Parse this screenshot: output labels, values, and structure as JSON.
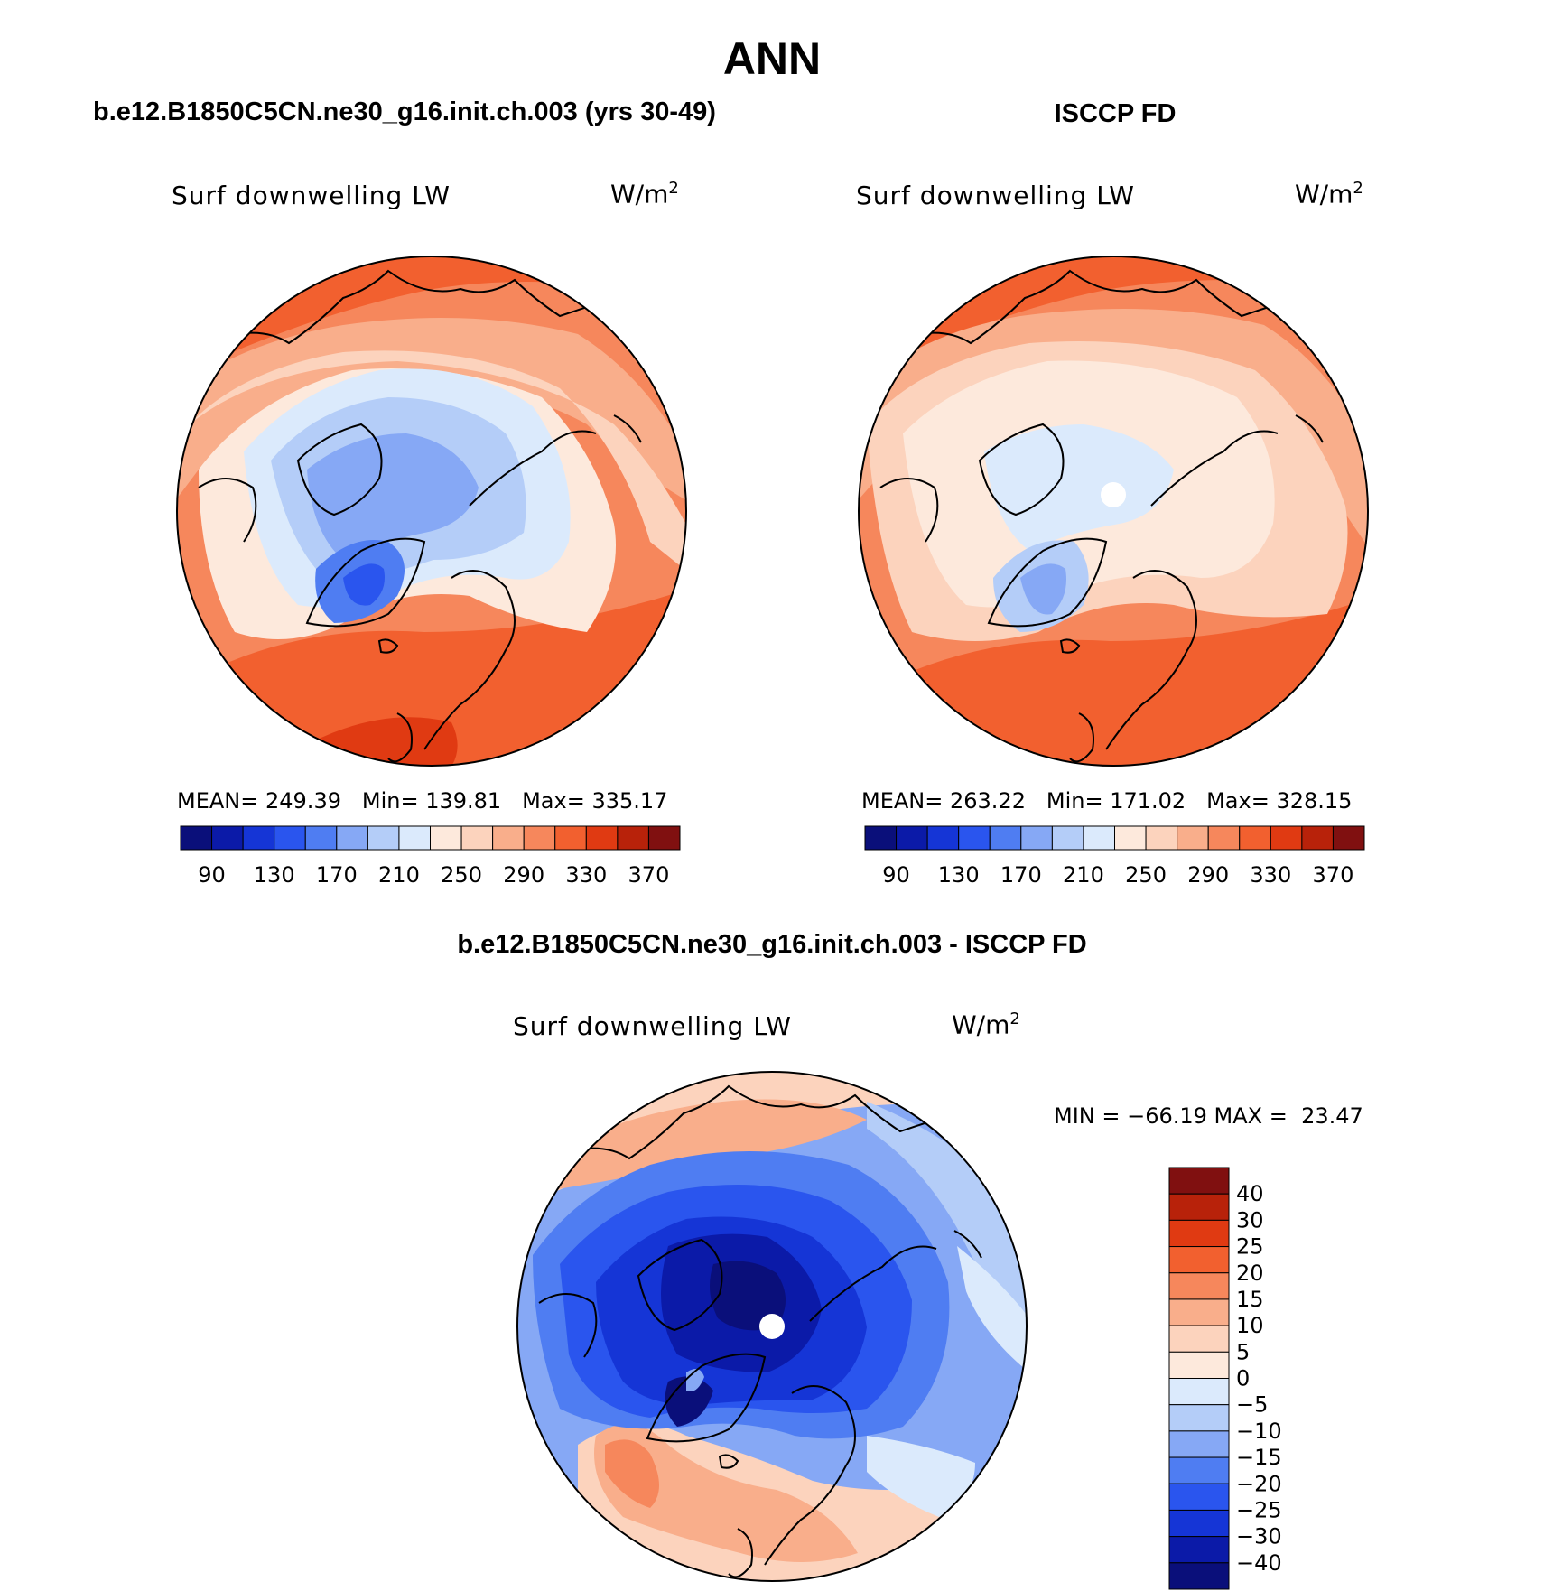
{
  "page": {
    "season_title": "ANN"
  },
  "panels": [
    {
      "id": "model",
      "case_title": "b.e12.B1850C5CN.ne30_g16.init.ch.003 (yrs 30-49)",
      "variable": "Surf downwelling LW",
      "units_base": "W/m",
      "units_exp": "2",
      "stats": {
        "mean_label": "MEAN=",
        "mean": "249.39",
        "min_label": "Min=",
        "min": "139.81",
        "max_label": "Max=",
        "max": "335.17"
      }
    },
    {
      "id": "obs",
      "case_title": "ISCCP FD",
      "variable": "Surf downwelling LW",
      "units_base": "W/m",
      "units_exp": "2",
      "stats": {
        "mean_label": "MEAN=",
        "mean": "263.22",
        "min_label": "Min=",
        "min": "171.02",
        "max_label": "Max=",
        "max": "328.15"
      }
    }
  ],
  "abs_colorbar": {
    "colors": [
      "#0a0f7a",
      "#0b1aa8",
      "#1535d6",
      "#2a55ee",
      "#4f7df2",
      "#86a8f5",
      "#b4cdf8",
      "#dbeafc",
      "#fde9dc",
      "#fcd3bd",
      "#f9ae8b",
      "#f6875c",
      "#f2602f",
      "#e03a12",
      "#b8220a",
      "#801010"
    ],
    "tick_labels": [
      "90",
      "130",
      "170",
      "210",
      "250",
      "290",
      "330",
      "370"
    ]
  },
  "diff_panel": {
    "title": "b.e12.B1850C5CN.ne30_g16.init.ch.003 - ISCCP FD",
    "variable": "Surf downwelling LW",
    "units_base": "W/m",
    "units_exp": "2",
    "minmax_text": "MIN = −66.19 MAX =  23.47",
    "colorbar": {
      "colors": [
        "#801010",
        "#b8220a",
        "#e03a12",
        "#f2602f",
        "#f6875c",
        "#f9ae8b",
        "#fcd3bd",
        "#fde9dc",
        "#dbeafc",
        "#b4cdf8",
        "#86a8f5",
        "#4f7df2",
        "#2a55ee",
        "#1535d6",
        "#0b1aa8",
        "#0a0f7a"
      ],
      "tick_labels": [
        "40",
        "30",
        "25",
        "20",
        "15",
        "10",
        "5",
        "0",
        "−5",
        "−10",
        "−15",
        "−20",
        "−25",
        "−30",
        "−40"
      ]
    }
  }
}
